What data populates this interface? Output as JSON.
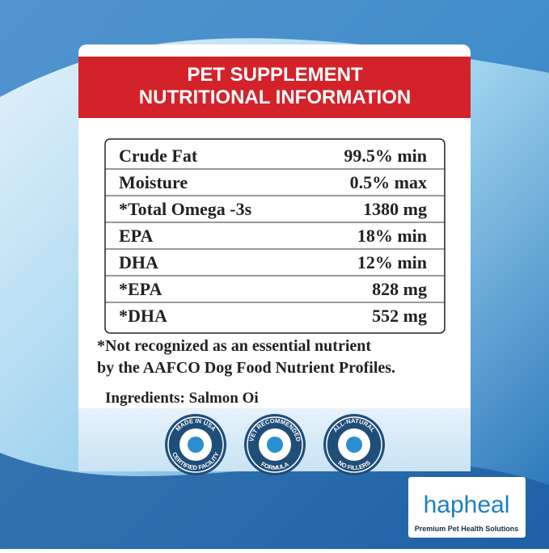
{
  "header": {
    "title_lines": [
      "PET SUPPLEMENT",
      "NUTRITIONAL INFORMATION"
    ]
  },
  "table": {
    "rows": [
      [
        "Crude Fat",
        "99.5% min"
      ],
      [
        "Moisture",
        "0.5% max"
      ],
      [
        "*Total Omega -3s",
        "1380  mg"
      ],
      [
        "EPA",
        "18% min"
      ],
      [
        "DHA",
        "12% min"
      ],
      [
        "*EPA",
        "828 mg"
      ],
      [
        "*DHA",
        "552 mg"
      ]
    ]
  },
  "footnote": [
    "*Not recognized as an essential nutrient",
    "by the AAFCO Dog Food Nutrient Profiles."
  ],
  "ingredients": "Ingredients: Salmon Oi",
  "badges": [
    {
      "top": "MADE IN USA",
      "bottom": "CERTIFIED FACILITY"
    },
    {
      "top": "VET RECOMMENDED",
      "bottom": "FORMULA"
    },
    {
      "top": "ALL-NATURAL",
      "bottom": "NO FILLERS"
    }
  ],
  "brand": {
    "name": "hapheal",
    "tagline": "Premium Pet Health Solutions"
  }
}
